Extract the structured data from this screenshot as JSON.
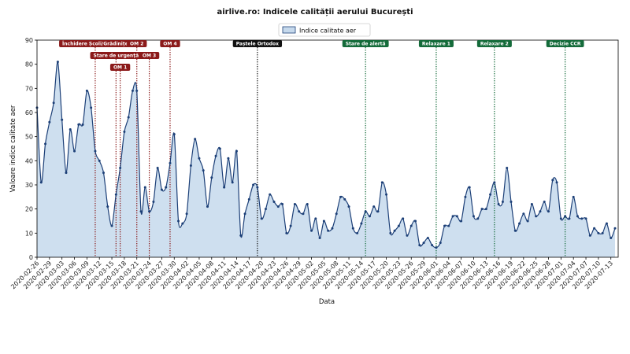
{
  "chart_data": {
    "type": "area",
    "title": "airlive.ro: Indicele calității aerului București",
    "xlabel": "Data",
    "ylabel": "Valoare indice calitate aer",
    "ylim": [
      0,
      90
    ],
    "yticks": [
      0,
      10,
      20,
      30,
      40,
      50,
      60,
      70,
      80,
      90
    ],
    "xticks": [
      "2020-02-26",
      "2020-02-29",
      "2020-03-03",
      "2020-03-06",
      "2020-03-09",
      "2020-03-12",
      "2020-03-15",
      "2020-03-18",
      "2020-03-21",
      "2020-03-24",
      "2020-03-27",
      "2020-03-30",
      "2020-04-02",
      "2020-04-05",
      "2020-04-08",
      "2020-04-11",
      "2020-04-14",
      "2020-04-17",
      "2020-04-20",
      "2020-04-23",
      "2020-04-26",
      "2020-04-29",
      "2020-05-02",
      "2020-05-05",
      "2020-05-08",
      "2020-05-11",
      "2020-05-14",
      "2020-05-17",
      "2020-05-20",
      "2020-05-23",
      "2020-05-26",
      "2020-05-29",
      "2020-06-01",
      "2020-06-04",
      "2020-06-07",
      "2020-06-10",
      "2020-06-13",
      "2020-06-16",
      "2020-06-19",
      "2020-06-22",
      "2020-06-25",
      "2020-06-28",
      "2020-07-01",
      "2020-07-04",
      "2020-07-07",
      "2020-07-10",
      "2020-07-13"
    ],
    "grid": false,
    "legend": {
      "position": "top-center"
    },
    "x": [
      "2020-02-26",
      "2020-02-27",
      "2020-02-28",
      "2020-02-29",
      "2020-03-01",
      "2020-03-02",
      "2020-03-03",
      "2020-03-04",
      "2020-03-05",
      "2020-03-06",
      "2020-03-07",
      "2020-03-08",
      "2020-03-09",
      "2020-03-10",
      "2020-03-11",
      "2020-03-12",
      "2020-03-13",
      "2020-03-14",
      "2020-03-15",
      "2020-03-16",
      "2020-03-17",
      "2020-03-18",
      "2020-03-19",
      "2020-03-20",
      "2020-03-21",
      "2020-03-22",
      "2020-03-23",
      "2020-03-24",
      "2020-03-25",
      "2020-03-26",
      "2020-03-27",
      "2020-03-28",
      "2020-03-29",
      "2020-03-30",
      "2020-03-31",
      "2020-04-01",
      "2020-04-02",
      "2020-04-03",
      "2020-04-04",
      "2020-04-05",
      "2020-04-06",
      "2020-04-07",
      "2020-04-08",
      "2020-04-09",
      "2020-04-10",
      "2020-04-11",
      "2020-04-12",
      "2020-04-13",
      "2020-04-14",
      "2020-04-15",
      "2020-04-16",
      "2020-04-17",
      "2020-04-18",
      "2020-04-19",
      "2020-04-20",
      "2020-04-21",
      "2020-04-22",
      "2020-04-23",
      "2020-04-24",
      "2020-04-25",
      "2020-04-26",
      "2020-04-27",
      "2020-04-28",
      "2020-04-29",
      "2020-04-30",
      "2020-05-01",
      "2020-05-02",
      "2020-05-03",
      "2020-05-04",
      "2020-05-05",
      "2020-05-06",
      "2020-05-07",
      "2020-05-08",
      "2020-05-09",
      "2020-05-10",
      "2020-05-11",
      "2020-05-12",
      "2020-05-13",
      "2020-05-14",
      "2020-05-15",
      "2020-05-16",
      "2020-05-17",
      "2020-05-18",
      "2020-05-19",
      "2020-05-20",
      "2020-05-21",
      "2020-05-22",
      "2020-05-23",
      "2020-05-24",
      "2020-05-25",
      "2020-05-26",
      "2020-05-27",
      "2020-05-28",
      "2020-05-29",
      "2020-05-30",
      "2020-05-31",
      "2020-06-01",
      "2020-06-02",
      "2020-06-03",
      "2020-06-04",
      "2020-06-05",
      "2020-06-06",
      "2020-06-07",
      "2020-06-08",
      "2020-06-09",
      "2020-06-10",
      "2020-06-11",
      "2020-06-12",
      "2020-06-13",
      "2020-06-14",
      "2020-06-15",
      "2020-06-16",
      "2020-06-17",
      "2020-06-18",
      "2020-06-19",
      "2020-06-20",
      "2020-06-21",
      "2020-06-22",
      "2020-06-23",
      "2020-06-24",
      "2020-06-25",
      "2020-06-26",
      "2020-06-27",
      "2020-06-28",
      "2020-06-29",
      "2020-06-30",
      "2020-07-01",
      "2020-07-02",
      "2020-07-03",
      "2020-07-04",
      "2020-07-05",
      "2020-07-06",
      "2020-07-07",
      "2020-07-08",
      "2020-07-09",
      "2020-07-10",
      "2020-07-11",
      "2020-07-12",
      "2020-07-13",
      "2020-07-14"
    ],
    "series": [
      {
        "name": "Indice calitate aer",
        "color": "#1c3f77",
        "fill": "#c6d9ec",
        "values": [
          62,
          31,
          47,
          56,
          64,
          81,
          57,
          35,
          53,
          44,
          55,
          55,
          69,
          62,
          44,
          40,
          35,
          21,
          13,
          26,
          37,
          52,
          58,
          69,
          69,
          19,
          29,
          19,
          23,
          37,
          28,
          29,
          39,
          51,
          15,
          14,
          18,
          38,
          49,
          41,
          36,
          21,
          33,
          42,
          45,
          29,
          41,
          31,
          44,
          9,
          18,
          24,
          30,
          29,
          16,
          20,
          26,
          23,
          21,
          22,
          10,
          13,
          22,
          19,
          18,
          22,
          11,
          16,
          8,
          15,
          11,
          12,
          18,
          25,
          24,
          21,
          12,
          10,
          14,
          19,
          17,
          21,
          19,
          31,
          26,
          10,
          11,
          13,
          16,
          9,
          13,
          15,
          5,
          6,
          8,
          5,
          4,
          6,
          13,
          13,
          17,
          17,
          15,
          25,
          29,
          17,
          16,
          20,
          20,
          26,
          31,
          22,
          23,
          37,
          23,
          11,
          14,
          18,
          15,
          22,
          17,
          19,
          23,
          19,
          32,
          31,
          16,
          17,
          16,
          25,
          17,
          16,
          16,
          9,
          12,
          10,
          10,
          14,
          8,
          12
        ]
      }
    ],
    "annotations": [
      {
        "label": "Închidere Școli/Grădinițe",
        "date": "2020-03-11",
        "color": "#8b1a1a"
      },
      {
        "label": "Stare de urgență",
        "date": "2020-03-16",
        "color": "#8b1a1a"
      },
      {
        "label": "OM 1",
        "date": "2020-03-17",
        "color": "#8b1a1a"
      },
      {
        "label": "OM 2",
        "date": "2020-03-21",
        "color": "#8b1a1a"
      },
      {
        "label": "OM 3",
        "date": "2020-03-24",
        "color": "#8b1a1a"
      },
      {
        "label": "OM 4",
        "date": "2020-03-29",
        "color": "#8b1a1a"
      },
      {
        "label": "Paștele Ortodox",
        "date": "2020-04-19",
        "color": "#111111"
      },
      {
        "label": "Stare de alertă",
        "date": "2020-05-15",
        "color": "#146b3a"
      },
      {
        "label": "Relaxare 1",
        "date": "2020-06-01",
        "color": "#146b3a"
      },
      {
        "label": "Relaxare 2",
        "date": "2020-06-15",
        "color": "#146b3a"
      },
      {
        "label": "Decizie CCR",
        "date": "2020-07-02",
        "color": "#146b3a"
      }
    ]
  }
}
